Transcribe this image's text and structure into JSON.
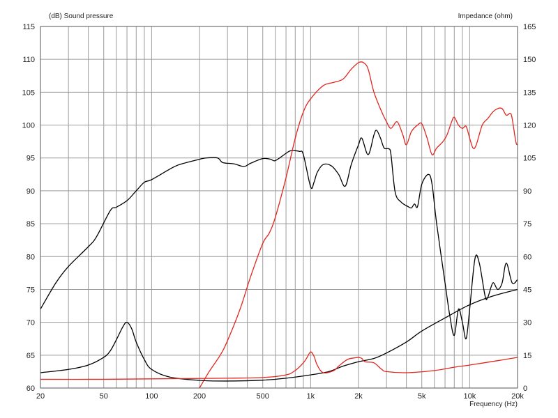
{
  "chart_data": {
    "type": "line",
    "x_scale": "log",
    "xlim": [
      20,
      20000
    ],
    "y_left_lim": [
      60,
      115
    ],
    "y_right_lim": [
      0,
      165
    ],
    "grid": true,
    "left_axis_title": "(dB)  Sound pressure",
    "right_axis_title": "Impedance  (ohm)",
    "x_axis_title": "Frequency  (Hz)",
    "x_ticks": [
      {
        "value": 20,
        "label": "20"
      },
      {
        "value": 50,
        "label": "50"
      },
      {
        "value": 100,
        "label": "100"
      },
      {
        "value": 200,
        "label": "200"
      },
      {
        "value": 500,
        "label": "500"
      },
      {
        "value": 1000,
        "label": "1k"
      },
      {
        "value": 2000,
        "label": "2k"
      },
      {
        "value": 5000,
        "label": "5k"
      },
      {
        "value": 10000,
        "label": "10k"
      },
      {
        "value": 20000,
        "label": "20k"
      }
    ],
    "y_left_ticks": [
      60,
      65,
      70,
      75,
      80,
      85,
      90,
      95,
      100,
      105,
      110,
      115
    ],
    "y_right_ticks": [
      0,
      15,
      30,
      45,
      60,
      75,
      90,
      105,
      120,
      135,
      150,
      165
    ],
    "series": [
      {
        "color": "#000000",
        "axis": "left",
        "points": [
          [
            20,
            72
          ],
          [
            25,
            76
          ],
          [
            30,
            78.5
          ],
          [
            40,
            81.5
          ],
          [
            45,
            83
          ],
          [
            55,
            87
          ],
          [
            60,
            87.5
          ],
          [
            70,
            88.5
          ],
          [
            80,
            90
          ],
          [
            90,
            91.3
          ],
          [
            100,
            91.7
          ],
          [
            130,
            93.3
          ],
          [
            150,
            94
          ],
          [
            200,
            94.8
          ],
          [
            220,
            95
          ],
          [
            260,
            95
          ],
          [
            280,
            94.3
          ],
          [
            330,
            94.1
          ],
          [
            380,
            93.7
          ],
          [
            420,
            94.2
          ],
          [
            500,
            94.9
          ],
          [
            560,
            94.8
          ],
          [
            600,
            94.6
          ],
          [
            700,
            95.7
          ],
          [
            750,
            96.1
          ],
          [
            850,
            96
          ],
          [
            900,
            95.5
          ],
          [
            1000,
            90.6
          ],
          [
            1050,
            91.3
          ],
          [
            1100,
            92.8
          ],
          [
            1200,
            94
          ],
          [
            1350,
            93.8
          ],
          [
            1500,
            92.5
          ],
          [
            1650,
            90.7
          ],
          [
            1800,
            94
          ],
          [
            2000,
            97
          ],
          [
            2100,
            98
          ],
          [
            2300,
            95.5
          ],
          [
            2500,
            98.5
          ],
          [
            2600,
            99.2
          ],
          [
            2750,
            98
          ],
          [
            2900,
            96.5
          ],
          [
            3100,
            96.4
          ],
          [
            3200,
            95.5
          ],
          [
            3400,
            89.8
          ],
          [
            3700,
            88.3
          ],
          [
            4100,
            87.6
          ],
          [
            4300,
            87.4
          ],
          [
            4500,
            88
          ],
          [
            4700,
            87.6
          ],
          [
            5000,
            91
          ],
          [
            5500,
            92.5
          ],
          [
            5800,
            91
          ],
          [
            6200,
            85
          ],
          [
            7000,
            76
          ],
          [
            7500,
            71
          ],
          [
            8000,
            68
          ],
          [
            8500,
            72
          ],
          [
            9000,
            70
          ],
          [
            9500,
            67.5
          ],
          [
            10000,
            72
          ],
          [
            10800,
            79.7
          ],
          [
            11500,
            79
          ],
          [
            12500,
            74
          ],
          [
            13000,
            73.8
          ],
          [
            14000,
            76
          ],
          [
            15000,
            75
          ],
          [
            16000,
            76
          ],
          [
            17000,
            79
          ],
          [
            18500,
            76
          ],
          [
            20000,
            76.5
          ]
        ]
      },
      {
        "color": "#e0261e",
        "axis": "left",
        "points": [
          [
            200,
            60
          ],
          [
            230,
            62.5
          ],
          [
            270,
            65
          ],
          [
            300,
            67.2
          ],
          [
            360,
            72
          ],
          [
            420,
            77
          ],
          [
            500,
            82
          ],
          [
            550,
            83.6
          ],
          [
            600,
            86
          ],
          [
            700,
            92
          ],
          [
            800,
            98
          ],
          [
            900,
            102
          ],
          [
            1000,
            104
          ],
          [
            1200,
            106
          ],
          [
            1400,
            106.5
          ],
          [
            1600,
            107
          ],
          [
            1800,
            108.5
          ],
          [
            2000,
            109.5
          ],
          [
            2150,
            109.5
          ],
          [
            2300,
            108.5
          ],
          [
            2500,
            105
          ],
          [
            2800,
            102
          ],
          [
            3000,
            100.5
          ],
          [
            3200,
            99.5
          ],
          [
            3500,
            100.5
          ],
          [
            3800,
            98.5
          ],
          [
            4000,
            97
          ],
          [
            4300,
            99
          ],
          [
            4700,
            100
          ],
          [
            5000,
            100.2
          ],
          [
            5400,
            98
          ],
          [
            5800,
            95.5
          ],
          [
            6200,
            96.5
          ],
          [
            6800,
            97.5
          ],
          [
            7200,
            98.5
          ],
          [
            7700,
            100.5
          ],
          [
            8000,
            101.2
          ],
          [
            8500,
            100
          ],
          [
            9000,
            99.5
          ],
          [
            9500,
            99.8
          ],
          [
            10000,
            98
          ],
          [
            10500,
            96.5
          ],
          [
            11000,
            97
          ],
          [
            12000,
            100
          ],
          [
            13000,
            101
          ],
          [
            14000,
            102
          ],
          [
            15000,
            102.5
          ],
          [
            16000,
            102.5
          ],
          [
            17000,
            101.5
          ],
          [
            18000,
            101.8
          ],
          [
            18500,
            101
          ],
          [
            19500,
            97.5
          ],
          [
            20000,
            97
          ]
        ]
      },
      {
        "color": "#000000",
        "axis": "right",
        "points": [
          [
            20,
            7
          ],
          [
            30,
            8.5
          ],
          [
            40,
            10.5
          ],
          [
            50,
            14
          ],
          [
            55,
            17
          ],
          [
            60,
            22
          ],
          [
            66,
            28
          ],
          [
            70,
            30
          ],
          [
            75,
            27
          ],
          [
            80,
            21
          ],
          [
            90,
            13
          ],
          [
            100,
            8.5
          ],
          [
            130,
            5
          ],
          [
            200,
            3.5
          ],
          [
            300,
            3.2
          ],
          [
            500,
            3.6
          ],
          [
            700,
            4.5
          ],
          [
            1000,
            6
          ],
          [
            1300,
            7.5
          ],
          [
            1600,
            10
          ],
          [
            2000,
            12
          ],
          [
            2500,
            13.5
          ],
          [
            3000,
            16
          ],
          [
            4000,
            21
          ],
          [
            5000,
            26
          ],
          [
            7000,
            32
          ],
          [
            10000,
            38
          ],
          [
            14000,
            42
          ],
          [
            20000,
            45
          ]
        ]
      },
      {
        "color": "#e0261e",
        "axis": "right",
        "points": [
          [
            20,
            4
          ],
          [
            50,
            4
          ],
          [
            100,
            4.2
          ],
          [
            300,
            4.5
          ],
          [
            500,
            4.8
          ],
          [
            700,
            6
          ],
          [
            800,
            8
          ],
          [
            900,
            11.5
          ],
          [
            950,
            14
          ],
          [
            1000,
            16.5
          ],
          [
            1050,
            14.5
          ],
          [
            1100,
            10.5
          ],
          [
            1200,
            7
          ],
          [
            1400,
            8
          ],
          [
            1500,
            10
          ],
          [
            1700,
            13
          ],
          [
            1900,
            13.8
          ],
          [
            2000,
            14
          ],
          [
            2100,
            13.5
          ],
          [
            2200,
            12
          ],
          [
            2500,
            11.5
          ],
          [
            2800,
            8.5
          ],
          [
            3000,
            7.5
          ],
          [
            4000,
            7
          ],
          [
            6000,
            8
          ],
          [
            8000,
            9.5
          ],
          [
            10000,
            10.5
          ],
          [
            15000,
            12.5
          ],
          [
            20000,
            14
          ]
        ]
      }
    ]
  }
}
